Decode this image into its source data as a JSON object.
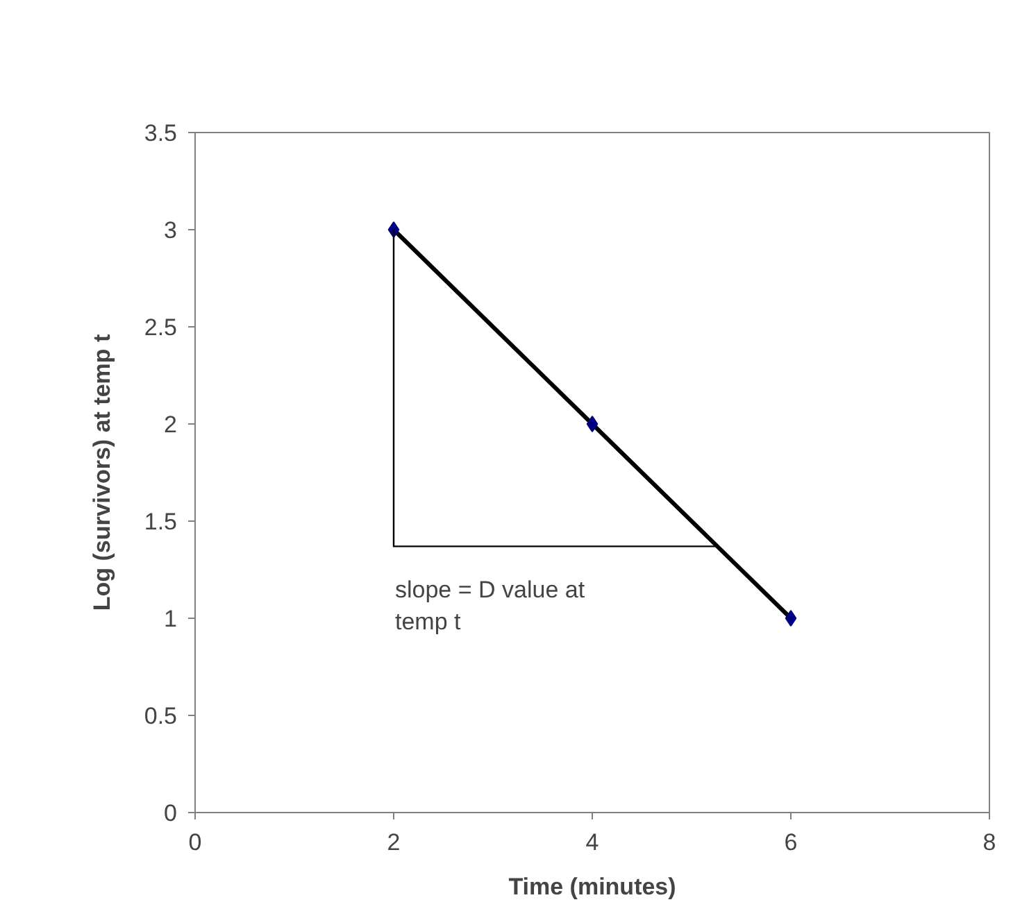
{
  "chart_data": {
    "type": "line",
    "xlabel": "Time (minutes)",
    "ylabel": "Log (survivors) at temp t",
    "xlim": [
      0,
      8
    ],
    "ylim": [
      0,
      3.5
    ],
    "xticks": [
      0,
      2,
      4,
      6,
      8
    ],
    "yticks": [
      0,
      0.5,
      1,
      1.5,
      2,
      2.5,
      3,
      3.5
    ],
    "grid": false,
    "series": [
      {
        "x": [
          2,
          4,
          6
        ],
        "values": [
          3,
          2,
          1
        ],
        "color": "#000000",
        "marker": "diamond"
      },
      {
        "x": [
          2,
          2,
          5.25
        ],
        "values": [
          3,
          1.37,
          1.37
        ],
        "color": "#000000",
        "marker": "none"
      }
    ],
    "annotations": [
      "slope = D value at\ntemp t"
    ]
  }
}
